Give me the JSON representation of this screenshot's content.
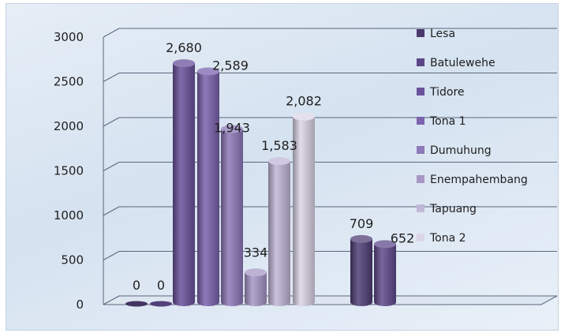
{
  "chart_data": {
    "type": "bar",
    "title": "",
    "xlabel": "",
    "ylabel": "",
    "ylim": [
      0,
      3000
    ],
    "yticks": [
      "0",
      "500",
      "1000",
      "1500",
      "2000",
      "2500",
      "3000"
    ],
    "grid": true,
    "legend_position": "right",
    "render_style": "3d-cylinder",
    "series": [
      {
        "name": "Lesa",
        "value": 0,
        "label": "0",
        "color": "#4b3a6e"
      },
      {
        "name": "Batulewehe",
        "value": 0,
        "label": "0",
        "color": "#5b4787"
      },
      {
        "name": "Tidore",
        "value": 2680,
        "label": "2,680",
        "color": "#6a529c"
      },
      {
        "name": "Tona 1",
        "value": 2589,
        "label": "2,589",
        "color": "#7b63ad"
      },
      {
        "name": "Dumuhung",
        "value": 1943,
        "label": "1,943",
        "color": "#8f79ba"
      },
      {
        "name": "Enempahembang",
        "value": 334,
        "label": "334",
        "color": "#a797c6"
      },
      {
        "name": "Tapuang",
        "value": 1583,
        "label": "1,583",
        "color": "#c2b7d8"
      },
      {
        "name": "Tona 2",
        "value": 2082,
        "label": "2,082",
        "color": "#dcd5e8"
      },
      {
        "name": "",
        "value": 709,
        "label": "709",
        "color": "#503f76"
      },
      {
        "name": "",
        "value": 652,
        "label": "652",
        "color": "#5f4b8c"
      }
    ]
  }
}
